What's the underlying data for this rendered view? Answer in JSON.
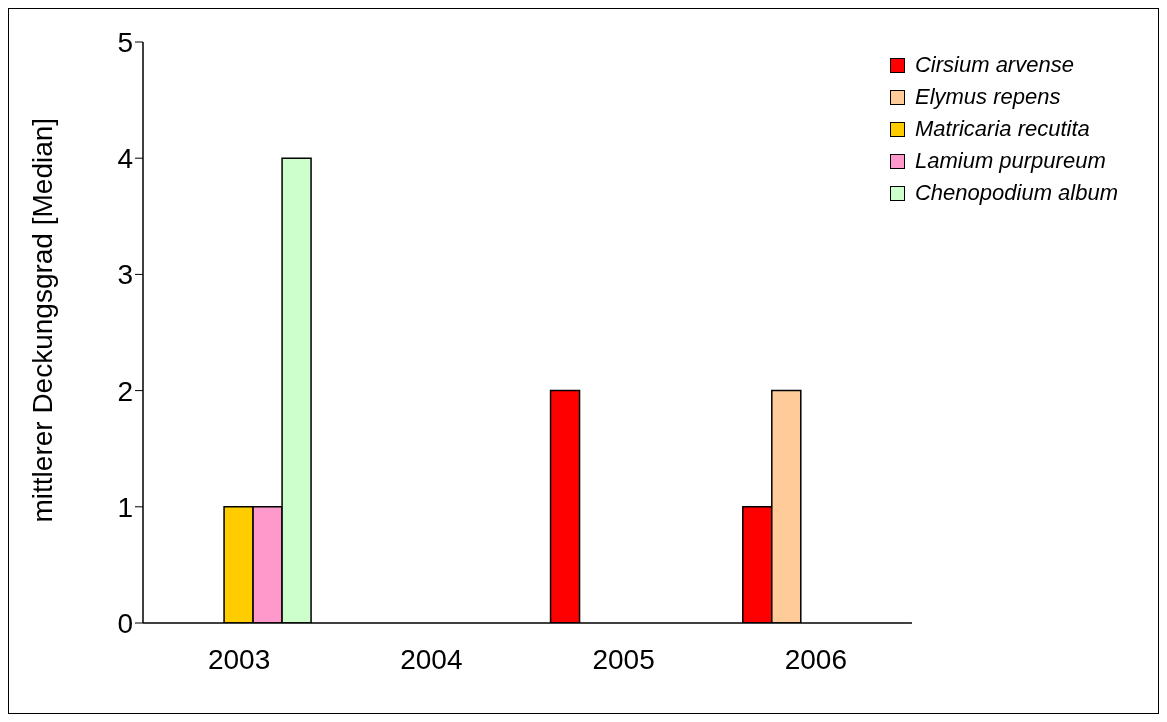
{
  "chart_data": {
    "type": "bar",
    "ylabel": "mittlerer Deckungsgrad [Median]",
    "categories": [
      "2003",
      "2004",
      "2005",
      "2006"
    ],
    "series": [
      {
        "name": "Cirsium arvense",
        "color": "#ff0000",
        "values": [
          0,
          0,
          2,
          1
        ]
      },
      {
        "name": "Elymus repens",
        "color": "#ffcc99",
        "values": [
          0,
          0,
          0,
          2
        ]
      },
      {
        "name": "Matricaria recutita",
        "color": "#ffcc00",
        "values": [
          1,
          0,
          0,
          0
        ]
      },
      {
        "name": "Lamium purpureum",
        "color": "#ff99cc",
        "values": [
          1,
          0,
          0,
          0
        ]
      },
      {
        "name": "Chenopodium album",
        "color": "#ccffcc",
        "values": [
          4,
          0,
          0,
          0
        ]
      }
    ],
    "ylim": [
      0,
      5
    ],
    "yticks": [
      0,
      1,
      2,
      3,
      4,
      5
    ],
    "grid": false,
    "legend": "top right"
  }
}
